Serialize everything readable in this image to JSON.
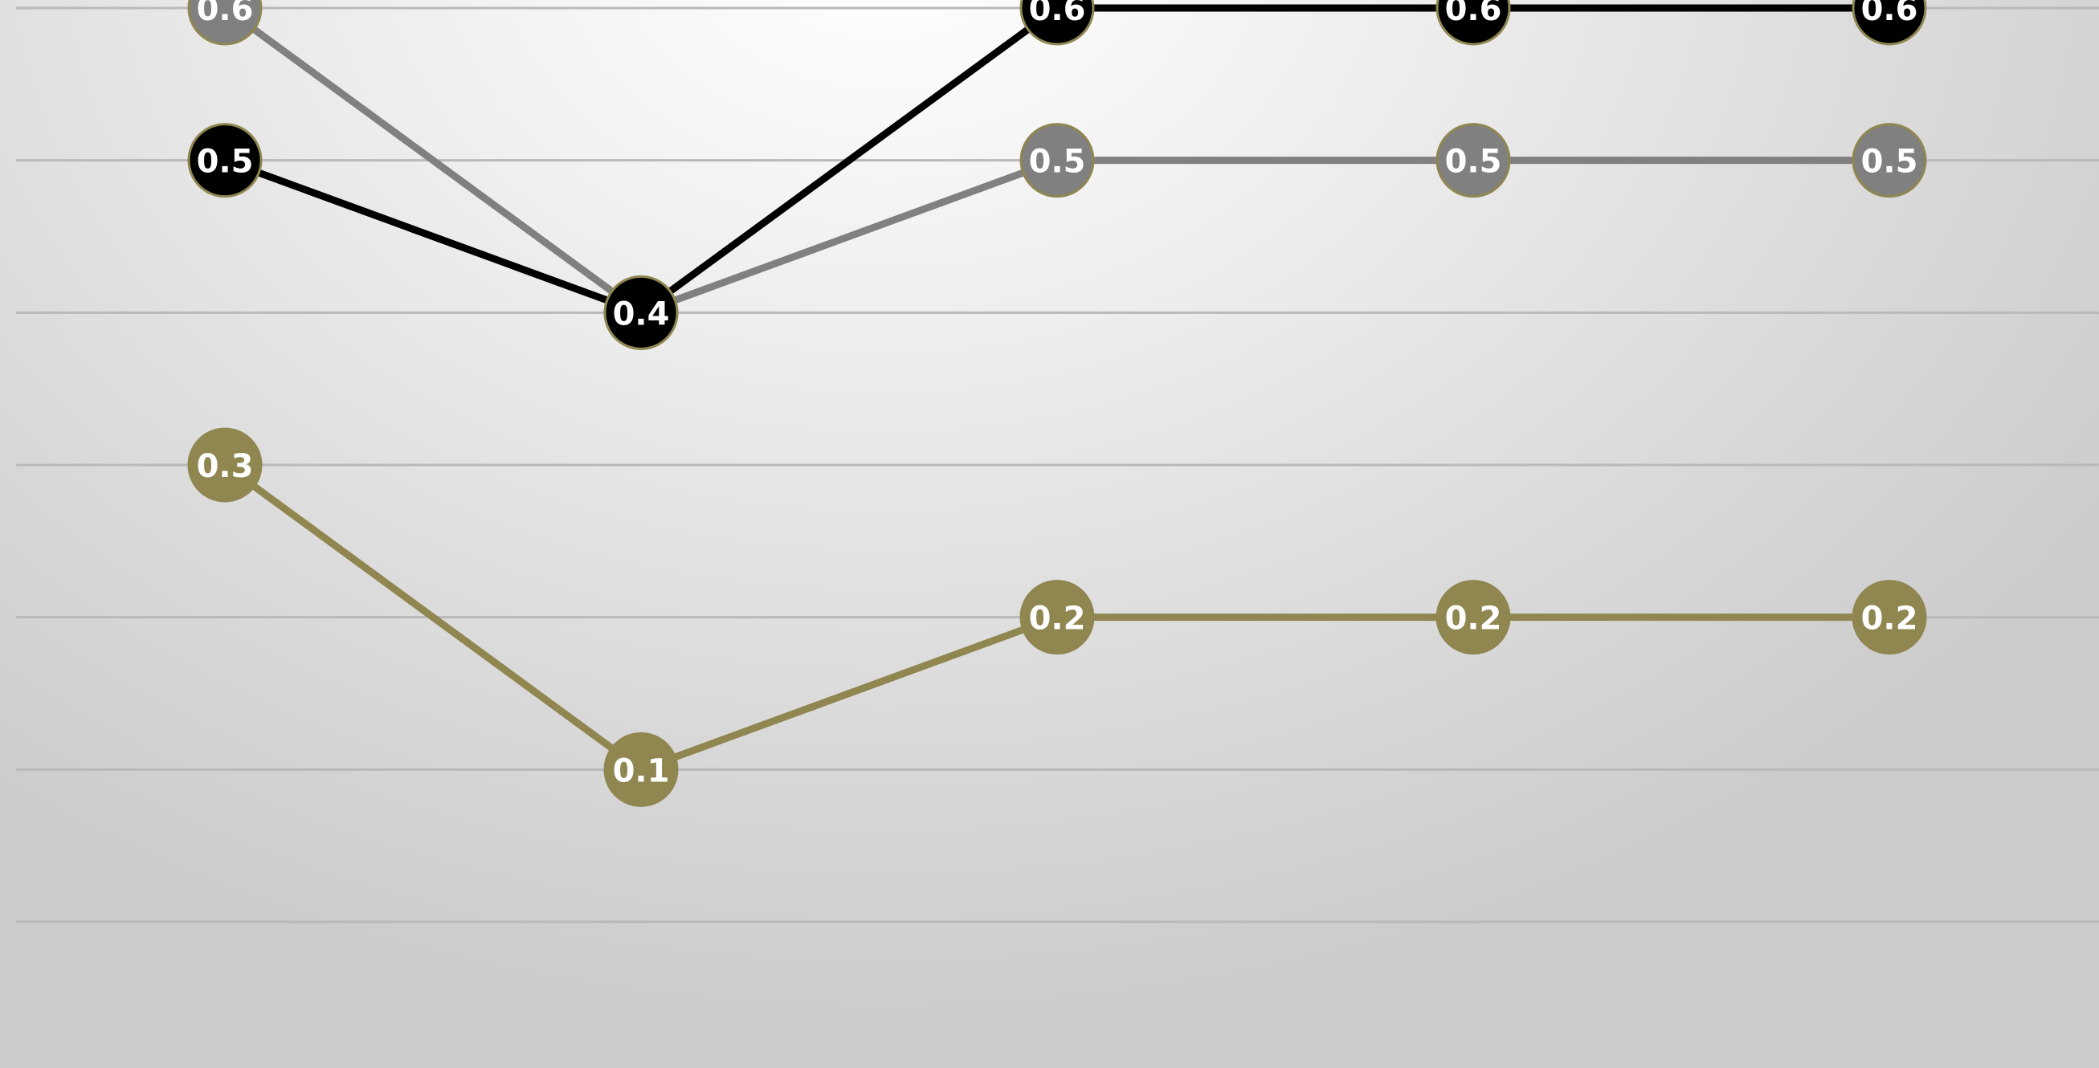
{
  "chart_data": {
    "type": "line",
    "categories": [
      "",
      "",
      "",
      "",
      ""
    ],
    "ylim": [
      0,
      0.6
    ],
    "grid": true,
    "legend": "none",
    "series": [
      {
        "color": "#000000",
        "values": [
          0.5,
          0.4,
          0.6,
          0.6,
          0.6
        ]
      },
      {
        "color": "#808080",
        "values": [
          0.6,
          0.4,
          0.5,
          0.5,
          0.5
        ]
      },
      {
        "color": "#8f8650",
        "values": [
          0.3,
          0.1,
          0.2,
          0.2,
          0.2
        ]
      }
    ],
    "data_labels": [
      [
        "0.5",
        "0.4",
        "0.6",
        "0.6",
        "0.6"
      ],
      [
        "0.6",
        "0.4",
        "0.5",
        "0.5",
        "0.5"
      ],
      [
        "0.3",
        "0.1",
        "0.2",
        "0.2",
        "0.2"
      ]
    ]
  }
}
